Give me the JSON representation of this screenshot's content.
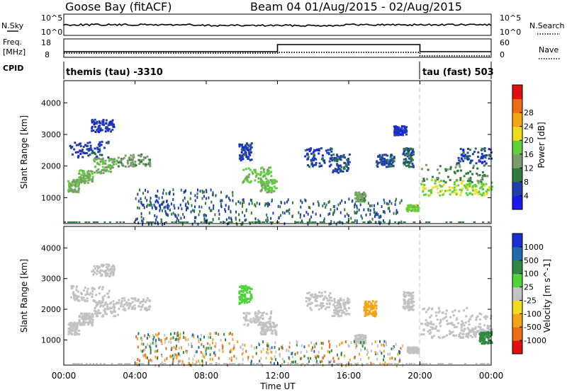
{
  "header": {
    "radar": "Goose Bay (fitACF)",
    "beam_dates": "Beam 04 01/Aug/2015 - 02/Aug/2015"
  },
  "nsky": {
    "label": "N.Sky",
    "tick_top": "10^5",
    "tick_bottom": "10^0",
    "right_tick_top": "10^5",
    "right_tick_bottom": "10^0",
    "right_label": "N.Search",
    "right_label_style": "dotted"
  },
  "freq": {
    "label_line1": "Freq.",
    "label_line2": "[MHz]",
    "tick_top": "18",
    "tick_bottom": "8",
    "right_tick_top": "60",
    "right_tick_bottom": "0",
    "right_label": "Nave",
    "right_label_style": "dotted"
  },
  "cpid": {
    "label": "CPID",
    "seg1_label": "themis (tau) -3310",
    "seg2_label": "tau (fast) 503"
  },
  "chart_data": [
    {
      "type": "heatmap",
      "panel": "power",
      "ylabel": "Slant Range [km]",
      "yticks": [
        "1000",
        "2000",
        "3000",
        "4000"
      ],
      "ylim": [
        180,
        4700
      ],
      "xlim_hours": [
        0,
        24
      ],
      "colorbar_label": "Power [dB]",
      "colorbar_ticks": [
        "4",
        "8",
        "12",
        "16",
        "20",
        "24",
        "28"
      ],
      "colors": [
        "#1a1af0",
        "#1f3fae",
        "#2f7a3c",
        "#7c9c6c",
        "#5fcf3a",
        "#eedc1e",
        "#f5a418",
        "#f06a14",
        "#e11010"
      ],
      "blobs": [
        {
          "t": [
            0.2,
            0.8
          ],
          "r": [
            1200,
            1600
          ],
          "v": 15
        },
        {
          "t": [
            0.8,
            1.6
          ],
          "r": [
            1500,
            1900
          ],
          "v": 16
        },
        {
          "t": [
            1.6,
            3.0
          ],
          "r": [
            1800,
            2300
          ],
          "v": 15
        },
        {
          "t": [
            3.0,
            4.8
          ],
          "r": [
            2000,
            2400
          ],
          "v": 13
        },
        {
          "t": [
            0.3,
            2.5
          ],
          "r": [
            2300,
            2800
          ],
          "v": 6
        },
        {
          "t": [
            1.5,
            2.8
          ],
          "r": [
            3100,
            3500
          ],
          "v": 5
        },
        {
          "t": [
            10.0,
            11.6
          ],
          "r": [
            1500,
            2000
          ],
          "v": 17
        },
        {
          "t": [
            11.0,
            11.9
          ],
          "r": [
            1200,
            1600
          ],
          "v": 16
        },
        {
          "t": [
            9.8,
            10.5
          ],
          "r": [
            2200,
            2800
          ],
          "v": 6
        },
        {
          "t": [
            13.5,
            15.0
          ],
          "r": [
            2000,
            2600
          ],
          "v": 6
        },
        {
          "t": [
            15.0,
            16.0
          ],
          "r": [
            1800,
            2400
          ],
          "v": 7
        },
        {
          "t": [
            16.3,
            16.9
          ],
          "r": [
            900,
            1200
          ],
          "v": 14
        },
        {
          "t": [
            17.5,
            18.5
          ],
          "r": [
            2000,
            2400
          ],
          "v": 7
        },
        {
          "t": [
            19.0,
            19.6
          ],
          "r": [
            2000,
            2600
          ],
          "v": 8
        },
        {
          "t": [
            19.2,
            19.9
          ],
          "r": [
            600,
            800
          ],
          "v": 18
        },
        {
          "t": [
            18.5,
            19.2
          ],
          "r": [
            3000,
            3300
          ],
          "v": 5
        },
        {
          "t": [
            20.0,
            22.5
          ],
          "r": [
            1100,
            1600
          ],
          "v": 20
        },
        {
          "t": [
            20.0,
            24.0
          ],
          "r": [
            1500,
            2100
          ],
          "v": 11
        },
        {
          "t": [
            22.5,
            24.0
          ],
          "r": [
            1100,
            1500
          ],
          "v": 19
        },
        {
          "t": [
            22.0,
            24.0
          ],
          "r": [
            2100,
            2600
          ],
          "v": 6
        }
      ],
      "speckle": [
        {
          "t": [
            4.0,
            9.5
          ],
          "r": [
            200,
            1300
          ],
          "v": 7
        },
        {
          "t": [
            9.5,
            19.0
          ],
          "r": [
            200,
            1000
          ],
          "v": 8
        }
      ]
    },
    {
      "type": "heatmap",
      "panel": "velocity",
      "ylabel": "Slant Range [km]",
      "yticks": [
        "1000",
        "2000",
        "3000",
        "4000"
      ],
      "ylim": [
        180,
        4700
      ],
      "xlim_hours": [
        0,
        24
      ],
      "xlabel": "Time UT",
      "xticks": [
        "00:00",
        "04:00",
        "08:00",
        "12:00",
        "16:00",
        "20:00",
        "00:00"
      ],
      "colorbar_label": "Velocity [m s^-1]",
      "colorbar_ticks": [
        "1000",
        "500",
        "100",
        "25",
        "-25",
        "-100",
        "-500",
        "-1000"
      ],
      "colors": [
        "#1a2fd0",
        "#1e6bb0",
        "#2e8a40",
        "#4fd43c",
        "#c2c2c2",
        "#f0dc1e",
        "#f5a418",
        "#f06a14",
        "#e11010"
      ],
      "blobs": [
        {
          "t": [
            0.2,
            0.8
          ],
          "r": [
            1200,
            1600
          ],
          "v": 0
        },
        {
          "t": [
            0.8,
            1.6
          ],
          "r": [
            1500,
            1900
          ],
          "v": 0
        },
        {
          "t": [
            1.6,
            3.0
          ],
          "r": [
            1800,
            2300
          ],
          "v": 0
        },
        {
          "t": [
            3.0,
            4.8
          ],
          "r": [
            2000,
            2400
          ],
          "v": 0
        },
        {
          "t": [
            0.3,
            2.5
          ],
          "r": [
            2300,
            2800
          ],
          "v": 0
        },
        {
          "t": [
            1.5,
            2.8
          ],
          "r": [
            3100,
            3500
          ],
          "v": 0
        },
        {
          "t": [
            10.0,
            11.6
          ],
          "r": [
            1500,
            2000
          ],
          "v": 0
        },
        {
          "t": [
            11.0,
            11.9
          ],
          "r": [
            1200,
            1600
          ],
          "v": 0
        },
        {
          "t": [
            9.8,
            10.5
          ],
          "r": [
            2200,
            2800
          ],
          "v": 50
        },
        {
          "t": [
            13.5,
            15.0
          ],
          "r": [
            2000,
            2600
          ],
          "v": 0
        },
        {
          "t": [
            15.0,
            16.0
          ],
          "r": [
            1800,
            2400
          ],
          "v": 0
        },
        {
          "t": [
            16.3,
            16.9
          ],
          "r": [
            900,
            1200
          ],
          "v": 0
        },
        {
          "t": [
            16.8,
            17.5
          ],
          "r": [
            1800,
            2300
          ],
          "v": -300
        },
        {
          "t": [
            19.0,
            19.6
          ],
          "r": [
            2000,
            2600
          ],
          "v": 0
        },
        {
          "t": [
            19.2,
            19.9
          ],
          "r": [
            600,
            800
          ],
          "v": 0
        },
        {
          "t": [
            20.0,
            22.5
          ],
          "r": [
            1100,
            1600
          ],
          "v": 0
        },
        {
          "t": [
            20.0,
            24.0
          ],
          "r": [
            1500,
            2100
          ],
          "v": 0
        },
        {
          "t": [
            22.5,
            24.0
          ],
          "r": [
            1100,
            1500
          ],
          "v": 0
        },
        {
          "t": [
            23.3,
            24.0
          ],
          "r": [
            900,
            1300
          ],
          "v": 120
        }
      ],
      "speckle": [
        {
          "t": [
            4.0,
            9.5
          ],
          "r": [
            200,
            1300
          ],
          "v": 0
        },
        {
          "t": [
            9.5,
            19.0
          ],
          "r": [
            200,
            1000
          ],
          "v": 0
        }
      ]
    }
  ]
}
